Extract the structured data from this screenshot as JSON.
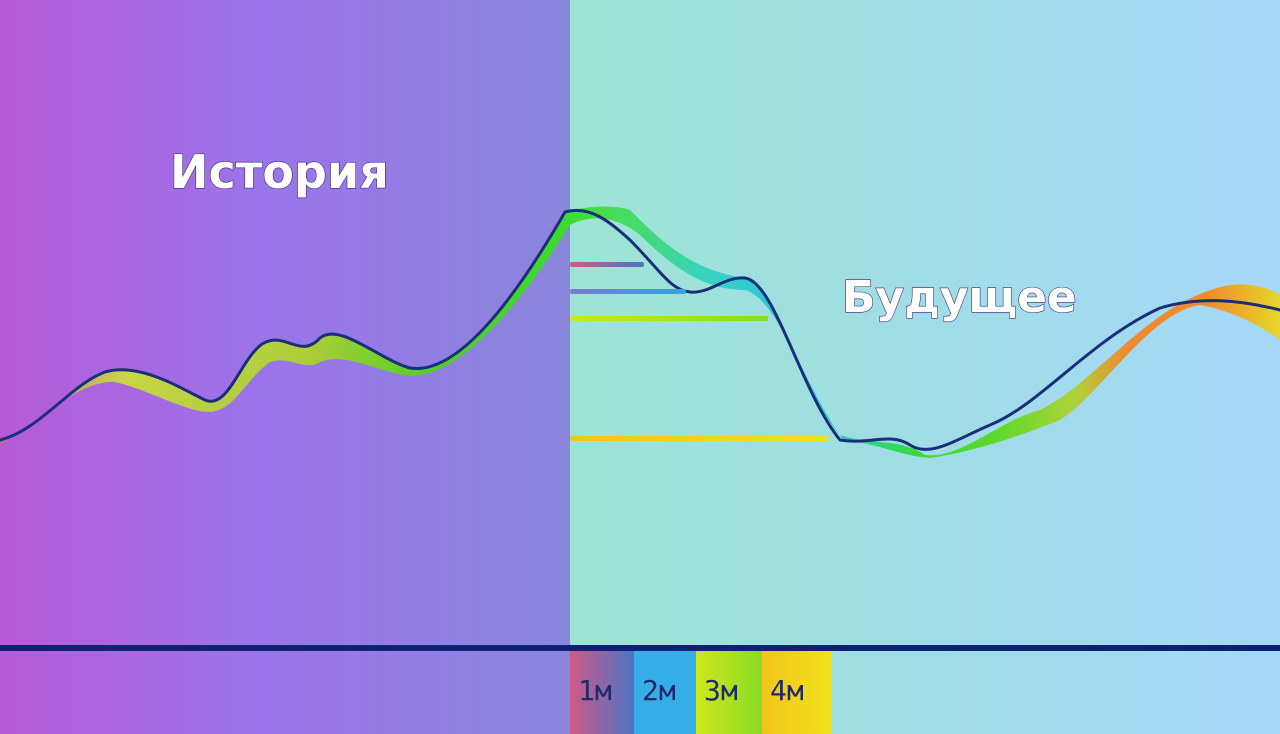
{
  "labels": {
    "history": "История",
    "future": "Будущее"
  },
  "periods": [
    {
      "label": "1м",
      "color_top": "#c4508e",
      "color_bottom": "#3f6fb8"
    },
    {
      "label": "2м",
      "color_top": "#35b4e8",
      "color_bottom": "#2f8fd8"
    },
    {
      "label": "3м",
      "color_top": "#c6ea1a",
      "color_bottom": "#7bdc1c"
    },
    {
      "label": "4м",
      "color_top": "#f2e81a",
      "color_bottom": "#f4b81c"
    }
  ],
  "colors": {
    "history_bg_left": "#b65ad8",
    "history_bg_mid": "#9b74ea",
    "history_bg_right": "#8a86dc",
    "future_bg_left": "#9ee4d4",
    "future_bg_right": "#a6d8f8",
    "axis": "#0f2170",
    "ribbon_edge": "#1a2f7a"
  }
}
